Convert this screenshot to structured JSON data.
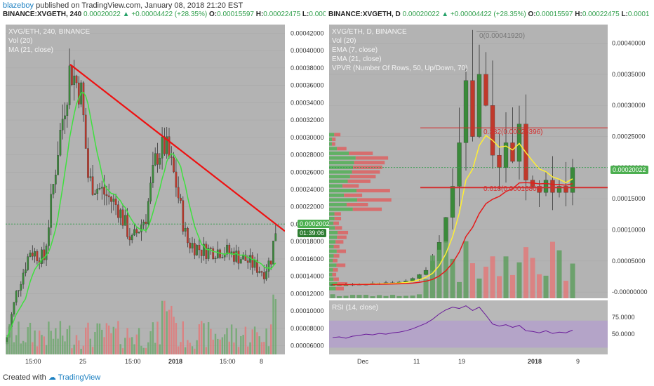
{
  "header": {
    "user": "blazeboy",
    "published_text": "published on TradingView.com, January 08, 2018 21:20 EST"
  },
  "left_panel": {
    "ohlc_symbol": "BINANCE:XVGETH, 240",
    "ohlc_last": "0.00020022",
    "ohlc_change": "+0.00004422 (+28.35%)",
    "ohlc_o": "0.00015597",
    "ohlc_h": "0.00022475",
    "ohlc_l": "0.000",
    "legend": [
      "XVG/ETH, 240, BINANCE",
      "Vol (20)",
      "MA (21, close)"
    ],
    "price_tag": "0.00020022",
    "countdown": "01:39:06"
  },
  "right_panel": {
    "ohlc_symbol": "BINANCE:XVGETH, D",
    "ohlc_last": "0.00020022",
    "ohlc_change": "+0.00004422 (+28.35%)",
    "ohlc_o": "0.00015597",
    "ohlc_h": "0.00022475",
    "ohlc_l": "0.0001",
    "legend": [
      "XVG/ETH, D, BINANCE",
      "Vol (20)",
      "EMA (7, close)",
      "EMA (21, close)",
      "VPVR (Number Of Rows, 50, Up/Down, 70)"
    ],
    "price_tag": "0.00020022",
    "fib_0": "0(0.00041920)",
    "fib_382": "0.382(0.00026396)",
    "fib_618": "0.618(0.00016804)",
    "rsi_legend": "RSI (14, close)"
  },
  "footer": {
    "created_with": "Created with",
    "brand": "TradingView"
  },
  "chart_data": [
    {
      "type": "candlestick",
      "title": "XVG/ETH, 240, BINANCE",
      "yaxis_ticks": [
        "0.00042000",
        "0.00040000",
        "0.00038000",
        "0.00036000",
        "0.00034000",
        "0.00032000",
        "0.00030000",
        "0.00028000",
        "0.00026000",
        "0.00024000",
        "0.00022000",
        "0.00020000",
        "0.00018000",
        "0.00016000",
        "0.00014000",
        "0.00012000",
        "0.00010000",
        "0.00008000",
        "0.00006000"
      ],
      "xaxis_ticks": [
        "15:00",
        "25",
        "15:00",
        "2018",
        "15:00",
        "8"
      ],
      "ylim": [
        5e-05,
        0.00043
      ],
      "last_price": 0.00020022,
      "trendline": {
        "from": 0.000384,
        "to": 0.000192
      }
    },
    {
      "type": "candlestick",
      "title": "XVG/ETH, D, BINANCE",
      "yaxis_ticks": [
        "0.00040000",
        "0.00035000",
        "0.00030000",
        "0.00025000",
        "0.00020000",
        "0.00015000",
        "0.00010000",
        "0.00005000",
        "-0.00000000"
      ],
      "xaxis_ticks": [
        "Dec",
        "11",
        "19",
        "2018",
        "9"
      ],
      "ylim": [
        -1e-05,
        0.00043
      ],
      "last_price": 0.00020022,
      "fib_levels": [
        0.0004192,
        0.00026396,
        0.00016804
      ],
      "rsi_ticks": [
        "75.0000",
        "50.0000"
      ],
      "rsi_band": [
        30,
        70
      ]
    }
  ]
}
